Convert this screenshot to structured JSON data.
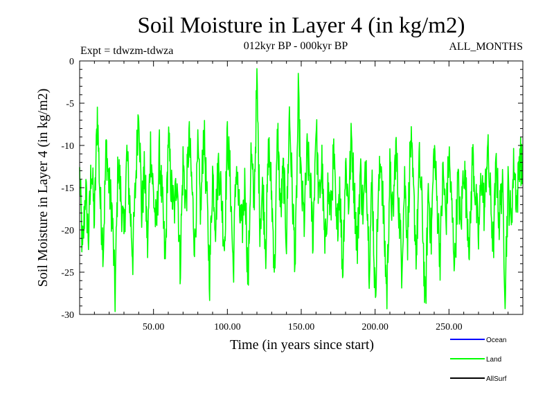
{
  "chart_data": {
    "type": "line",
    "title": "Soil Moisture in Layer 4 (in kg/m2)",
    "subtitle": "012kyr BP - 000kyr BP",
    "experiment_label": "Expt = tdwzm-tdwza",
    "period_label": "ALL_MONTHS",
    "xlabel": "Time (in years since start)",
    "ylabel": "Soil Moisture in Layer 4 (in kg/m2)",
    "xlim": [
      0,
      300
    ],
    "ylim": [
      -30,
      0
    ],
    "x_ticks": [
      50,
      100,
      150,
      200,
      250
    ],
    "x_tick_labels": [
      "50.00",
      "100.00",
      "150.00",
      "200.00",
      "250.00"
    ],
    "y_ticks": [
      0,
      -5,
      -10,
      -15,
      -20,
      -25,
      -30
    ],
    "y_tick_labels": [
      "0",
      "-5",
      "-10",
      "-15",
      "-20",
      "-25",
      "-30"
    ],
    "grid": false,
    "legend_position": "bottom-right",
    "series": [
      {
        "name": "Ocean",
        "color": "#0000ff",
        "values": []
      },
      {
        "name": "Land",
        "color": "#00ff00",
        "x_start": 0,
        "x_step": 0.25,
        "anchor_points": [
          [
            0,
            -13.5
          ],
          [
            2,
            -23
          ],
          [
            4,
            -15
          ],
          [
            6,
            -21
          ],
          [
            8,
            -12
          ],
          [
            10,
            -19
          ],
          [
            12,
            -6
          ],
          [
            14,
            -17
          ],
          [
            16,
            -22
          ],
          [
            18,
            -10
          ],
          [
            20,
            -15
          ],
          [
            22,
            -18
          ],
          [
            24,
            -27.8
          ],
          [
            26,
            -12
          ],
          [
            28,
            -16
          ],
          [
            30,
            -21
          ],
          [
            32,
            -11
          ],
          [
            34,
            -17
          ],
          [
            36,
            -23
          ],
          [
            38,
            -14
          ],
          [
            40,
            -4.7
          ],
          [
            42,
            -18
          ],
          [
            44,
            -13
          ],
          [
            46,
            -22
          ],
          [
            48,
            -10
          ],
          [
            50,
            -16
          ],
          [
            52,
            -20
          ],
          [
            54,
            -11
          ],
          [
            56,
            -17
          ],
          [
            58,
            -24
          ],
          [
            60,
            -9
          ],
          [
            62,
            -15
          ],
          [
            64,
            -18
          ],
          [
            66,
            -13
          ],
          [
            68,
            -24.5
          ],
          [
            70,
            -12
          ],
          [
            72,
            -17
          ],
          [
            74,
            -9
          ],
          [
            76,
            -15
          ],
          [
            78,
            -22
          ],
          [
            80,
            -11
          ],
          [
            82,
            -18
          ],
          [
            84,
            -8
          ],
          [
            86,
            -16
          ],
          [
            88,
            -25.5
          ],
          [
            90,
            -13
          ],
          [
            92,
            -19
          ],
          [
            94,
            -12
          ],
          [
            96,
            -16
          ],
          [
            98,
            -22
          ],
          [
            100,
            -9
          ],
          [
            102,
            -14
          ],
          [
            104,
            -25
          ],
          [
            106,
            -12
          ],
          [
            108,
            -18
          ],
          [
            110,
            -20
          ],
          [
            112,
            -14
          ],
          [
            114,
            -26.8
          ],
          [
            116,
            -11
          ],
          [
            118,
            -17
          ],
          [
            120,
            -2.7
          ],
          [
            122,
            -19
          ],
          [
            124,
            -15
          ],
          [
            126,
            -22
          ],
          [
            128,
            -10
          ],
          [
            130,
            -16
          ],
          [
            132,
            -25
          ],
          [
            134,
            -8
          ],
          [
            136,
            -18
          ],
          [
            138,
            -13
          ],
          [
            140,
            -21
          ],
          [
            142,
            -6
          ],
          [
            144,
            -16
          ],
          [
            146,
            -24
          ],
          [
            148,
            -4.4
          ],
          [
            150,
            -15
          ],
          [
            152,
            -19
          ],
          [
            154,
            -11
          ],
          [
            156,
            -14
          ],
          [
            158,
            -21
          ],
          [
            160,
            -7
          ],
          [
            162,
            -17
          ],
          [
            164,
            -12
          ],
          [
            166,
            -23
          ],
          [
            168,
            -15
          ],
          [
            170,
            -18
          ],
          [
            172,
            -11
          ],
          [
            174,
            -21
          ],
          [
            176,
            -14
          ],
          [
            178,
            -25
          ],
          [
            180,
            -12
          ],
          [
            182,
            -17
          ],
          [
            184,
            -9
          ],
          [
            186,
            -16
          ],
          [
            188,
            -22
          ],
          [
            190,
            -13
          ],
          [
            192,
            -18
          ],
          [
            194,
            -12
          ],
          [
            196,
            -24
          ],
          [
            198,
            -14
          ],
          [
            200,
            -28
          ],
          [
            202,
            -17
          ],
          [
            204,
            -11
          ],
          [
            206,
            -20
          ],
          [
            208,
            -27.5
          ],
          [
            210,
            -13
          ],
          [
            212,
            -19
          ],
          [
            214,
            -10
          ],
          [
            216,
            -17
          ],
          [
            218,
            -24
          ],
          [
            220,
            -14
          ],
          [
            222,
            -21
          ],
          [
            224,
            -9
          ],
          [
            226,
            -16
          ],
          [
            228,
            -23
          ],
          [
            230,
            -12
          ],
          [
            232,
            -18
          ],
          [
            234,
            -29.8
          ],
          [
            236,
            -15
          ],
          [
            238,
            -21
          ],
          [
            240,
            -10
          ],
          [
            242,
            -17
          ],
          [
            244,
            -23
          ],
          [
            246,
            -13
          ],
          [
            248,
            -19
          ],
          [
            250,
            -11
          ],
          [
            252,
            -18
          ],
          [
            254,
            -24
          ],
          [
            256,
            -14
          ],
          [
            258,
            -20
          ],
          [
            260,
            -12
          ],
          [
            262,
            -17
          ],
          [
            264,
            -22
          ],
          [
            266,
            -11
          ],
          [
            268,
            -16
          ],
          [
            270,
            -21
          ],
          [
            272,
            -13
          ],
          [
            274,
            -18
          ],
          [
            276,
            -10
          ],
          [
            278,
            -16
          ],
          [
            280,
            -22
          ],
          [
            282,
            -12
          ],
          [
            284,
            -19
          ],
          [
            286,
            -14
          ],
          [
            288,
            -26.8
          ],
          [
            290,
            -15
          ],
          [
            292,
            -19
          ],
          [
            294,
            -12
          ],
          [
            296,
            -17
          ],
          [
            298,
            -10.5
          ],
          [
            300,
            -14
          ]
        ]
      },
      {
        "name": "AllSurf",
        "color": "#000000",
        "values": []
      }
    ]
  }
}
